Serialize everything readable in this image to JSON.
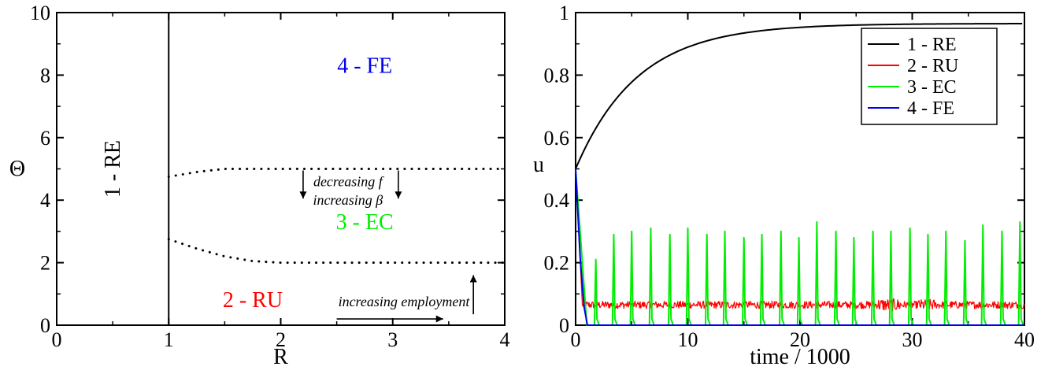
{
  "chart_data": [
    {
      "type": "line",
      "title": "",
      "xlabel": "R",
      "ylabel": "Θ",
      "xlim": [
        0,
        4
      ],
      "ylim": [
        0,
        10
      ],
      "xticks": [
        "0",
        "1",
        "2",
        "3",
        "4"
      ],
      "yticks": [
        "0",
        "2",
        "4",
        "6",
        "8",
        "10"
      ],
      "grid": false,
      "boundaries": [
        {
          "style": "solid",
          "x": [
            1,
            1
          ],
          "y": [
            0,
            10
          ]
        },
        {
          "style": "dotted",
          "x": [
            1,
            1.25,
            1.5,
            2,
            2.5,
            3,
            3.5,
            4
          ],
          "y": [
            4.75,
            4.9,
            5.0,
            5.0,
            5.0,
            5.0,
            5.0,
            5.0
          ]
        },
        {
          "style": "dotted",
          "x": [
            1,
            1.25,
            1.5,
            1.75,
            2,
            2.5,
            3,
            3.5,
            4
          ],
          "y": [
            2.75,
            2.45,
            2.2,
            2.05,
            2.0,
            2.0,
            2.0,
            2.0,
            2.0
          ]
        }
      ],
      "regions": [
        {
          "label": "1 - RE",
          "color": "#000000",
          "x": 0.5,
          "y": 5.0,
          "rotate": true
        },
        {
          "label": "2 - RU",
          "color": "#ff0000",
          "x": 1.75,
          "y": 0.8
        },
        {
          "label": "3 - EC",
          "color": "#00ee00",
          "x": 2.75,
          "y": 3.3
        },
        {
          "label": "4 - FE",
          "color": "#0000ee",
          "x": 2.75,
          "y": 8.3
        }
      ],
      "annotations": [
        {
          "text": "decreasing f",
          "x": 2.6,
          "y": 4.6
        },
        {
          "text": "increasing β",
          "x": 2.6,
          "y": 4.0
        },
        {
          "text": "increasing employment",
          "x": 3.1,
          "y": 0.75
        }
      ],
      "arrows": [
        {
          "from": [
            2.2,
            4.95
          ],
          "to": [
            2.2,
            4.05
          ]
        },
        {
          "from": [
            3.05,
            4.95
          ],
          "to": [
            3.05,
            4.05
          ]
        },
        {
          "from": [
            3.72,
            0.35
          ],
          "to": [
            3.72,
            1.6
          ]
        },
        {
          "from": [
            2.5,
            0.2
          ],
          "to": [
            3.45,
            0.2
          ]
        }
      ]
    },
    {
      "type": "line",
      "title": "",
      "xlabel": "time / 1000",
      "ylabel": "u",
      "xlim": [
        0,
        40
      ],
      "ylim": [
        0,
        1
      ],
      "xticks": [
        "0",
        "10",
        "20",
        "30",
        "40"
      ],
      "yticks": [
        "0",
        "0.2",
        "0.4",
        "0.6",
        "0.8",
        "1"
      ],
      "grid": false,
      "legend_position": "top-right",
      "series": [
        {
          "name": "1 - RE",
          "color": "#000000",
          "kind": "saturating",
          "start": 0.5,
          "end": 0.965,
          "tau": 5.5
        },
        {
          "name": "2 - RU",
          "color": "#ff0000",
          "kind": "noisy-level",
          "start": 0.5,
          "level": 0.065,
          "drop_end": 0.6,
          "noise": 0.012
        },
        {
          "name": "3 - EC",
          "color": "#00ee00",
          "kind": "spikes",
          "start": 0.5,
          "drop_end": 1.0,
          "baseline": 0.0,
          "spike_times": [
            1.8,
            3.4,
            5.0,
            6.7,
            8.4,
            10.0,
            11.7,
            13.3,
            15.0,
            16.6,
            18.3,
            19.9,
            21.5,
            23.2,
            24.8,
            26.5,
            28.1,
            29.8,
            31.4,
            33.0,
            34.7,
            36.3,
            38.0,
            39.6
          ],
          "spike_heights": [
            0.21,
            0.29,
            0.3,
            0.31,
            0.29,
            0.31,
            0.29,
            0.3,
            0.28,
            0.29,
            0.3,
            0.28,
            0.33,
            0.3,
            0.28,
            0.3,
            0.3,
            0.31,
            0.29,
            0.3,
            0.27,
            0.32,
            0.3,
            0.33
          ]
        },
        {
          "name": "4 - FE",
          "color": "#0000ee",
          "kind": "decay",
          "start": 0.5,
          "drop_end": 1.05,
          "level": 0.0
        }
      ]
    }
  ]
}
